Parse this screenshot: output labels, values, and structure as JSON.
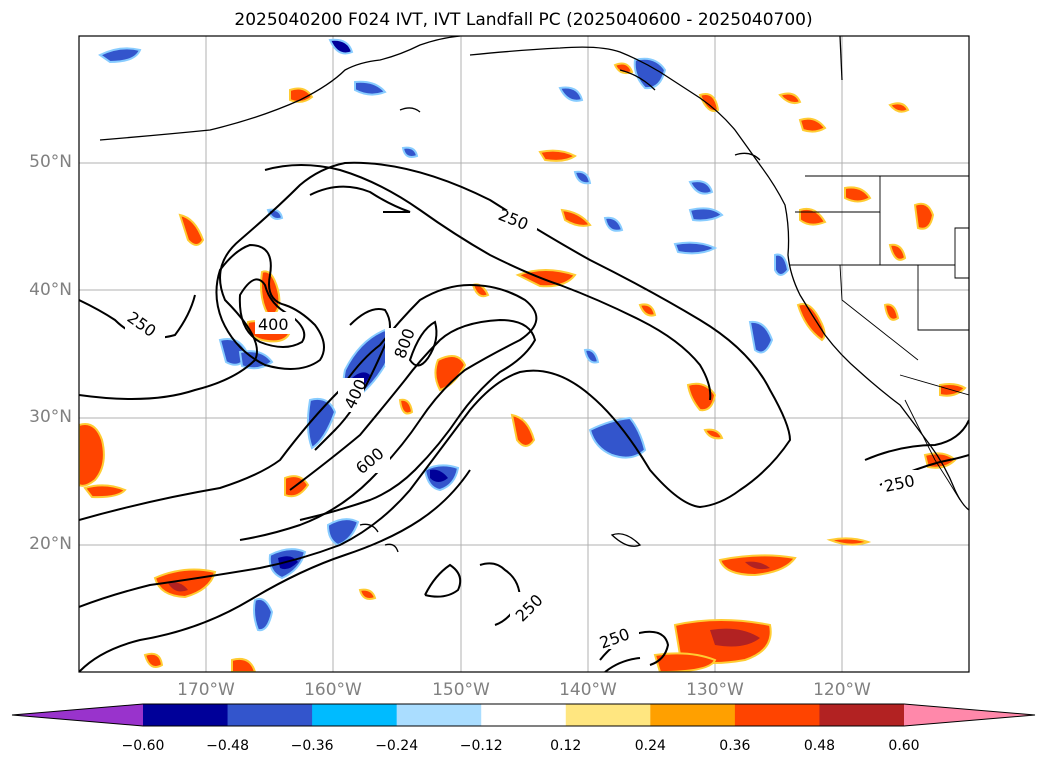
{
  "title": "2025040200 F024 IVT, IVT Landfall PC (2025040600 - 2025040700)",
  "lat_labels": [
    "50°N",
    "40°N",
    "30°N",
    "20°N"
  ],
  "lon_labels": [
    "170°W",
    "160°W",
    "150°W",
    "140°W",
    "130°W",
    "120°W"
  ],
  "contour_labels": [
    "250",
    "400",
    "800",
    "400",
    "600",
    "250",
    "250",
    "250",
    "250"
  ],
  "colorbar": {
    "ticks": [
      "−0.60",
      "−0.48",
      "−0.36",
      "−0.24",
      "−0.12",
      "0.12",
      "0.24",
      "0.36",
      "0.48",
      "0.60"
    ],
    "colors": [
      "#9933cc",
      "#000099",
      "#3355cc",
      "#00bbff",
      "#aaddff",
      "#ffffff",
      "#ffe680",
      "#ffa000",
      "#ff4400",
      "#b22222",
      "#ff88aa"
    ]
  },
  "colors": {
    "contour": "#000000",
    "grid": "#b0b0b0",
    "coast": "#000000"
  }
}
